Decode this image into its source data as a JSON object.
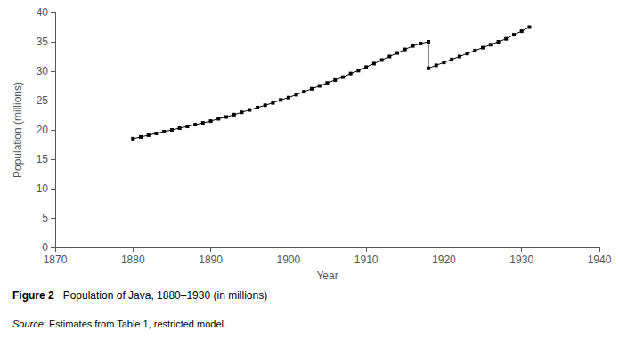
{
  "chart_data": {
    "type": "line",
    "xlabel": "Year",
    "ylabel": "Population (millions)",
    "xlim": [
      1870,
      1940
    ],
    "ylim": [
      0,
      40
    ],
    "xticks": [
      1870,
      1880,
      1890,
      1900,
      1910,
      1920,
      1930,
      1940
    ],
    "yticks": [
      0,
      5,
      10,
      15,
      20,
      25,
      30,
      35,
      40
    ],
    "grid": false,
    "series": [
      {
        "x": [
          1880,
          1881,
          1882,
          1883,
          1884,
          1885,
          1886,
          1887,
          1888,
          1889,
          1890,
          1891,
          1892,
          1893,
          1894,
          1895,
          1896,
          1897,
          1898,
          1899,
          1900,
          1901,
          1902,
          1903,
          1904,
          1905,
          1906,
          1907,
          1908,
          1909,
          1910,
          1911,
          1912,
          1913,
          1914,
          1915,
          1916,
          1917,
          1918
        ],
        "values": [
          18.5,
          18.8,
          19.1,
          19.4,
          19.7,
          20.0,
          20.3,
          20.6,
          20.9,
          21.2,
          21.5,
          21.9,
          22.2,
          22.6,
          23.0,
          23.4,
          23.8,
          24.2,
          24.6,
          25.1,
          25.5,
          26.0,
          26.5,
          27.0,
          27.5,
          28.0,
          28.5,
          29.0,
          29.6,
          30.1,
          30.7,
          31.3,
          31.9,
          32.5,
          33.1,
          33.7,
          34.3,
          34.7,
          35.0
        ],
        "color": "#000000",
        "marker": "square",
        "line_style": "solid"
      },
      {
        "x": [
          1918,
          1918
        ],
        "values": [
          30.5,
          35.0
        ],
        "color": "#000000",
        "line_style": "solid"
      },
      {
        "x": [
          1918,
          1919,
          1920,
          1921,
          1922,
          1923,
          1924,
          1925,
          1926,
          1927,
          1928,
          1929,
          1930,
          1931
        ],
        "values": [
          30.5,
          31.0,
          31.5,
          32.0,
          32.5,
          33.0,
          33.5,
          34.0,
          34.5,
          35.0,
          35.5,
          36.2,
          36.8,
          37.5
        ],
        "color": "#000000",
        "marker": "square",
        "line_style": "solid"
      }
    ],
    "annotations": [
      "Figure 2",
      "   Population of Java, 1880–1930 (in millions)",
      "Source",
      ": Estimates from Table 1, restricted model."
    ]
  }
}
